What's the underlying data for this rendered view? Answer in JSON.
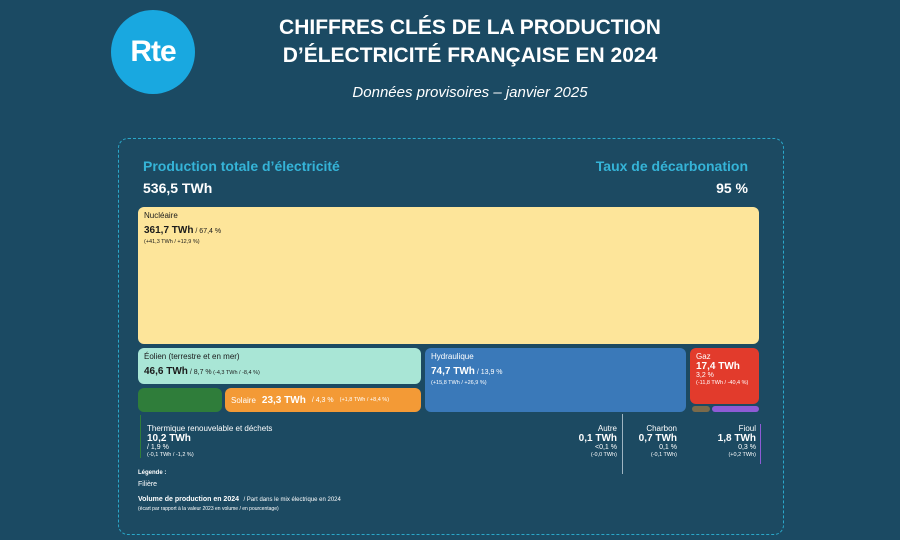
{
  "header": {
    "logo_text": "Rte",
    "title_line1": "CHIFFRES CLÉS DE LA PRODUCTION",
    "title_line2": "D’ÉLECTRICITÉ FRANÇAISE EN 2024",
    "subtitle": "Données provisoires – janvier 2025"
  },
  "summary": {
    "total_label": "Production totale d’électricité",
    "total_value": "536,5 TWh",
    "decarb_label": "Taux de décarbonation",
    "decarb_value": "95 %"
  },
  "chart_data": {
    "type": "treemap",
    "title": "Production totale d’électricité",
    "total_twh": 536.5,
    "unit": "TWh",
    "decarbonisation_rate_pct": 95,
    "series": [
      {
        "name": "Nucléaire",
        "value_twh": 361.7,
        "value_text": "361,7 TWh",
        "share_text": "67,4 %",
        "diff_text": "(+41,3 TWh / +12,9 %)",
        "color": "#fde59a"
      },
      {
        "name": "Éolien (terrestre et en mer)",
        "value_twh": 46.6,
        "value_text": "46,6 TWh",
        "share_text": "8,7 %",
        "diff_text": "(-4,3 TWh / -8,4 %)",
        "color": "#a9e6d6"
      },
      {
        "name": "Hydraulique",
        "value_twh": 74.7,
        "value_text": "74,7 TWh",
        "share_text": "13,9 %",
        "diff_text": "(+15,8 TWh / +26,9 %)",
        "color": "#3a79b9"
      },
      {
        "name": "Gaz",
        "value_twh": 17.4,
        "value_text": "17,4 TWh",
        "share_text": "3,2 %",
        "diff_text": "(-11,8 TWh / -40,4 %)",
        "color": "#e23b2c"
      },
      {
        "name": "Solaire",
        "value_twh": 23.3,
        "value_text": "23,3 TWh",
        "share_text": "4,3 %",
        "diff_text": "(+1,8 TWh / +8,4 %)",
        "color": "#f39a36"
      },
      {
        "name": "Thermique renouvelable et déchets",
        "value_twh": 10.2,
        "value_text": "10,2 TWh",
        "share_text": "1,9 %",
        "diff_text": "(-0,1 TWh / -1,2 %)",
        "color": "#2f7d3a"
      },
      {
        "name": "Autre",
        "value_twh": 0.1,
        "value_text": "0,1 TWh",
        "share_text": "<0,1 %",
        "diff_text": "(-0,0 TWh)",
        "color": "#cfd8dc"
      },
      {
        "name": "Charbon",
        "value_twh": 0.7,
        "value_text": "0,7 TWh",
        "share_text": "0,1 %",
        "diff_text": "(-0,1 TWh)",
        "color": "#7a6a4a"
      },
      {
        "name": "Fioul",
        "value_twh": 1.8,
        "value_text": "1,8 TWh",
        "share_text": "0,3 %",
        "diff_text": "(+0,2 TWh)",
        "color": "#8e5bd6"
      }
    ]
  },
  "legend": {
    "title": "Légende :",
    "filiere": "Filière",
    "volume": "Volume de production en 2024",
    "share": "/ Part dans le mix électrique en 2024",
    "diff": "(écart par rapport à la valeur 2023 en volume / en pourcentage)"
  }
}
